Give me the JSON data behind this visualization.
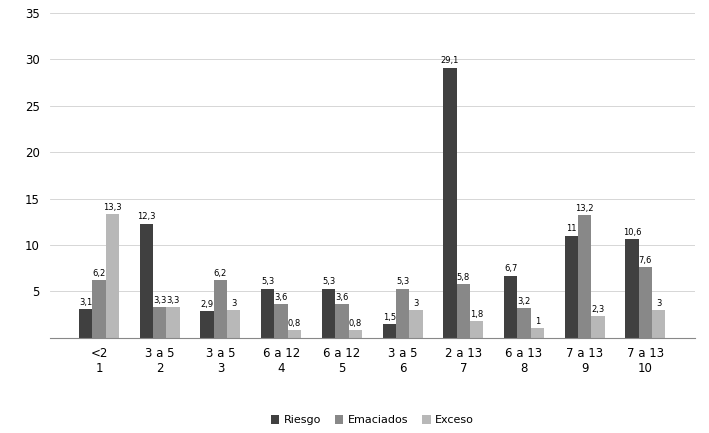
{
  "groups": [
    "<2\n1",
    "3 a 5\n2",
    "3 a 5\n3",
    "6 a 12\n4",
    "6 a 12\n5",
    "3 a 5\n6",
    "2 a 13\n7",
    "6 a 13\n8",
    "7 a 13\n9",
    "7 a 13\n10"
  ],
  "riesgo": [
    3.1,
    12.3,
    2.9,
    5.3,
    5.3,
    1.5,
    29.1,
    6.7,
    11.0,
    10.6
  ],
  "emaciados": [
    6.2,
    3.3,
    6.2,
    3.6,
    3.6,
    5.3,
    5.8,
    3.2,
    13.2,
    7.6
  ],
  "exceso": [
    13.3,
    3.3,
    3.0,
    0.8,
    0.8,
    3.0,
    1.8,
    1.0,
    2.3,
    3.0
  ],
  "riesgo_labels": [
    "3,1",
    "12,3",
    "2,9",
    "5,3",
    "5,3",
    "1,5",
    "29,1",
    "6,7",
    "11",
    "10,6"
  ],
  "emaciados_labels": [
    "6,2",
    "3,3",
    "6,2",
    "3,6",
    "3,6",
    "5,3",
    "5,8",
    "3,2",
    "13,2",
    "7,6"
  ],
  "exceso_labels": [
    "13,3",
    "3,3",
    "3",
    "0,8",
    "0,8",
    "3",
    "1,8",
    "1",
    "2,3",
    "3"
  ],
  "color_riesgo": "#404040",
  "color_emaciados": "#888888",
  "color_exceso": "#b8b8b8",
  "ylim": [
    0,
    35
  ],
  "yticks": [
    0,
    5,
    10,
    15,
    20,
    25,
    30,
    35
  ],
  "bar_width": 0.22,
  "legend_labels": [
    "Riesgo",
    "Emaciados",
    "Exceso"
  ],
  "label_fontsize": 6.0,
  "tick_fontsize": 8.5,
  "figsize": [
    7.09,
    4.33
  ],
  "dpi": 100
}
